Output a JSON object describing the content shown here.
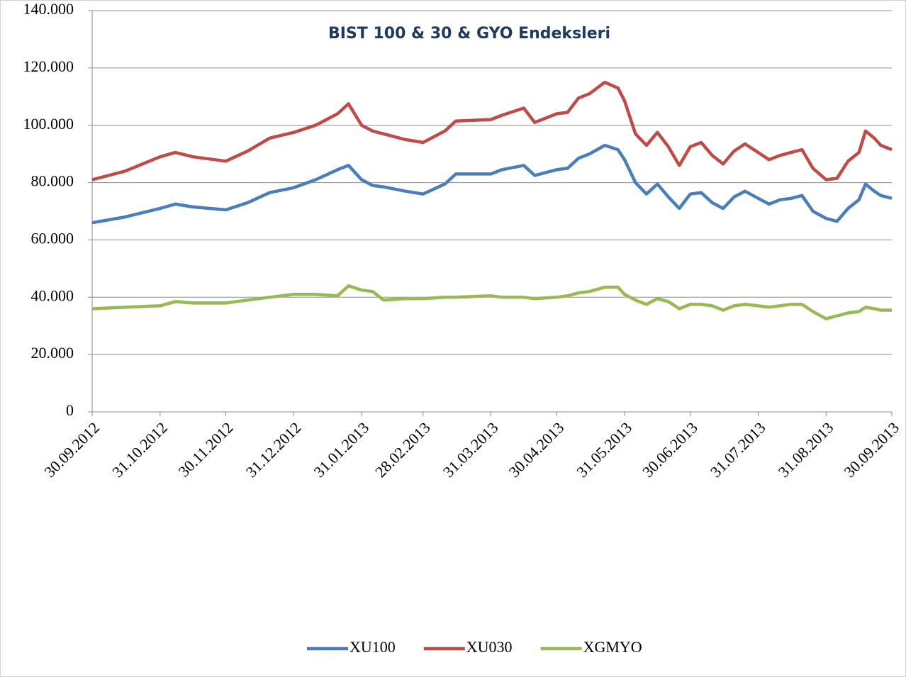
{
  "chart_data": {
    "type": "line",
    "title": "BIST 100 & 30 & GYO Endeksleri",
    "x": [
      "30.09.2012",
      "15.10.2012",
      "31.10.2012",
      "07.11.2012",
      "15.11.2012",
      "30.11.2012",
      "10.12.2012",
      "20.12.2012",
      "31.12.2012",
      "10.01.2013",
      "20.01.2013",
      "25.01.2013",
      "31.01.2013",
      "05.02.2013",
      "10.02.2013",
      "20.02.2013",
      "28.02.2013",
      "10.03.2013",
      "15.03.2013",
      "31.03.2013",
      "05.04.2013",
      "15.04.2013",
      "20.04.2013",
      "30.04.2013",
      "05.05.2013",
      "10.05.2013",
      "15.05.2013",
      "22.05.2013",
      "28.05.2013",
      "31.05.2013",
      "05.06.2013",
      "10.06.2013",
      "15.06.2013",
      "20.06.2013",
      "25.06.2013",
      "30.06.2013",
      "05.07.2013",
      "10.07.2013",
      "15.07.2013",
      "20.07.2013",
      "25.07.2013",
      "31.07.2013",
      "05.08.2013",
      "10.08.2013",
      "15.08.2013",
      "20.08.2013",
      "25.08.2013",
      "31.08.2013",
      "05.09.2013",
      "10.09.2013",
      "15.09.2013",
      "18.09.2013",
      "22.09.2013",
      "25.09.2013",
      "30.09.2013"
    ],
    "series": [
      {
        "name": "XU100",
        "color": "#4a7ebb",
        "values": [
          66000,
          68000,
          71000,
          72500,
          71500,
          70500,
          73000,
          76500,
          78200,
          81000,
          84500,
          86000,
          81000,
          79000,
          78500,
          77000,
          76000,
          79500,
          83000,
          83000,
          84500,
          86000,
          82500,
          84500,
          85000,
          88500,
          90000,
          93000,
          91500,
          88000,
          80000,
          76000,
          79500,
          75000,
          71000,
          76000,
          76500,
          73000,
          71000,
          75000,
          77000,
          74500,
          72500,
          74000,
          74500,
          75500,
          70000,
          67500,
          66500,
          71000,
          74000,
          79500,
          77000,
          75500,
          74500
        ]
      },
      {
        "name": "XU030",
        "color": "#be4b48",
        "values": [
          81000,
          84000,
          89000,
          90500,
          89000,
          87500,
          91000,
          95500,
          97500,
          100000,
          104000,
          107500,
          100000,
          98000,
          97000,
          95000,
          94000,
          98000,
          101500,
          102000,
          103500,
          106000,
          101000,
          104000,
          104500,
          109500,
          111000,
          115000,
          113000,
          108500,
          97000,
          93000,
          97500,
          92500,
          86000,
          92500,
          94000,
          89500,
          86500,
          91000,
          93500,
          90500,
          88000,
          89500,
          90500,
          91500,
          85000,
          81000,
          81500,
          87500,
          90500,
          98000,
          95500,
          93000,
          91500
        ]
      },
      {
        "name": "XGMYO",
        "color": "#98b954",
        "values": [
          36000,
          36500,
          37000,
          38500,
          38000,
          38000,
          39000,
          40000,
          41000,
          41000,
          40500,
          44000,
          42500,
          42000,
          39000,
          39500,
          39500,
          40000,
          40000,
          40500,
          40000,
          40000,
          39500,
          40000,
          40500,
          41500,
          42000,
          43500,
          43500,
          41000,
          39000,
          37500,
          39500,
          38500,
          36000,
          37500,
          37500,
          37000,
          35500,
          37000,
          37500,
          37000,
          36500,
          37000,
          37500,
          37500,
          35000,
          32500,
          33500,
          34500,
          35000,
          36500,
          36000,
          35500,
          35500
        ]
      }
    ],
    "xlim": [
      "30.09.2012",
      "30.09.2013"
    ],
    "xticks": [
      "30.09.2012",
      "31.10.2012",
      "30.11.2012",
      "31.12.2012",
      "31.01.2013",
      "28.02.2013",
      "31.03.2013",
      "30.04.2013",
      "31.05.2013",
      "30.06.2013",
      "31.07.2013",
      "31.08.2013",
      "30.09.2013"
    ],
    "ylim": [
      0,
      140000
    ],
    "yticks": [
      0,
      {
        "value": 20000,
        "label": "20.000"
      },
      {
        "value": 40000,
        "label": "40.000"
      },
      {
        "value": 60000,
        "label": "60.000"
      },
      {
        "value": 80000,
        "label": "80.000"
      },
      {
        "value": 100000,
        "label": "100.000"
      },
      {
        "value": 120000,
        "label": "120.000"
      },
      {
        "value": 140000,
        "label": "140.000"
      }
    ],
    "grid": true,
    "legend": "bottom"
  }
}
